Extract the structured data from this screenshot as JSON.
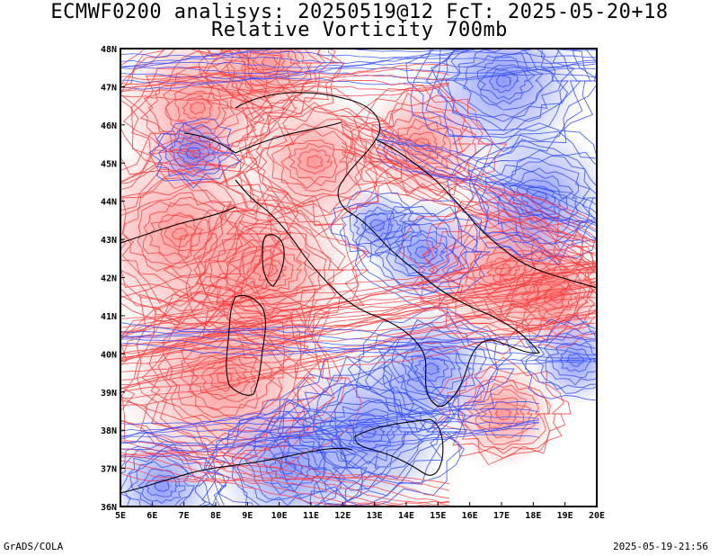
{
  "header": {
    "title_line_1": "ECMWF0200 analisys: 20250519@12 FcT: 2025-05-20+18",
    "title_line_2": "Relative Vorticity 700mb"
  },
  "footer": {
    "software": "GrADS/COLA",
    "timestamp": "2025-05-19-21:56"
  },
  "map": {
    "projection": "lat-lon",
    "lon_range": [
      5,
      20
    ],
    "lat_range": [
      36,
      48
    ],
    "x_ticks": [
      "5E",
      "6E",
      "7E",
      "8E",
      "9E",
      "10E",
      "11E",
      "12E",
      "13E",
      "14E",
      "15E",
      "16E",
      "17E",
      "18E",
      "19E",
      "20E"
    ],
    "y_ticks": [
      "36N",
      "37N",
      "38N",
      "39N",
      "40N",
      "41N",
      "42N",
      "43N",
      "44N",
      "45N",
      "46N",
      "47N",
      "48N"
    ],
    "field": "relative vorticity",
    "level": "700mb",
    "colors": {
      "positive_contours": "#ff3b3b",
      "negative_contours": "#2f4bff",
      "coastline": "#000000",
      "frame": "#000000"
    }
  }
}
